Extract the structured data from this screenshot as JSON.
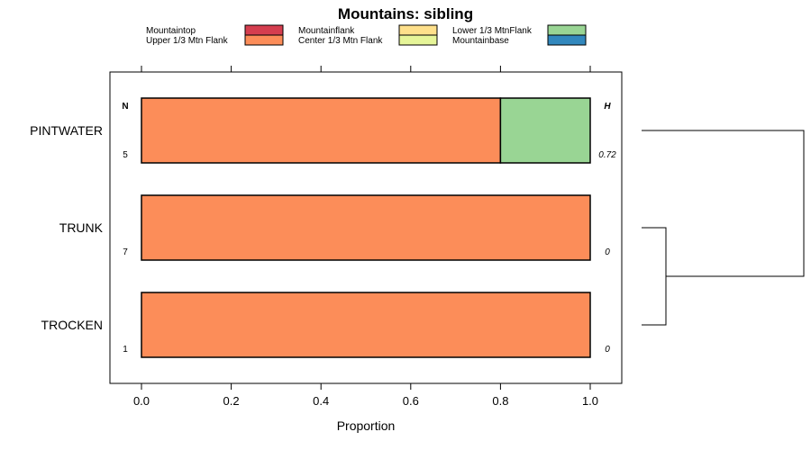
{
  "chart_data": {
    "type": "bar",
    "orientation": "horizontal",
    "stacked": true,
    "title": "Mountains: sibling",
    "xlabel": "Proportion",
    "ylabel": "",
    "xlim": [
      0,
      1
    ],
    "xticks": [
      0,
      0.2,
      0.4,
      0.6,
      0.8,
      1
    ],
    "xtick_labels": [
      "0.0",
      "0.2",
      "0.4",
      "0.6",
      "0.8",
      "1.0"
    ],
    "categories": [
      "PINTWATER",
      "TRUNK",
      "TROCKEN"
    ],
    "legend": [
      {
        "name": "Mountaintop",
        "color": "#D53E4F"
      },
      {
        "name": "Mountainflank",
        "color": "#FEE08B"
      },
      {
        "name": "Lower 1/3 MtnFlank",
        "color": "#99D594"
      },
      {
        "name": "Upper 1/3 Mtn Flank",
        "color": "#FC8D59"
      },
      {
        "name": "Center 1/3 Mtn Flank",
        "color": "#E6F598"
      },
      {
        "name": "Mountainbase",
        "color": "#3288BD"
      }
    ],
    "series": [
      {
        "name": "Upper 1/3 Mtn Flank",
        "color": "#FC8D59",
        "values": [
          0.8,
          1.0,
          1.0
        ]
      },
      {
        "name": "Lower 1/3 MtnFlank",
        "color": "#99D594",
        "values": [
          0.2,
          0,
          0
        ]
      }
    ],
    "n_header": "N",
    "h_header": "H",
    "n_values": [
      "5",
      "7",
      "1"
    ],
    "h_values": [
      "0.72",
      "0",
      "0"
    ],
    "dendrogram": {
      "merges": [
        {
          "left": "TRUNK",
          "right": "TROCKEN",
          "height": 0.15
        },
        {
          "left": "PINTWATER",
          "right": "TRUNK+TROCKEN",
          "height": 1.0
        }
      ]
    }
  }
}
